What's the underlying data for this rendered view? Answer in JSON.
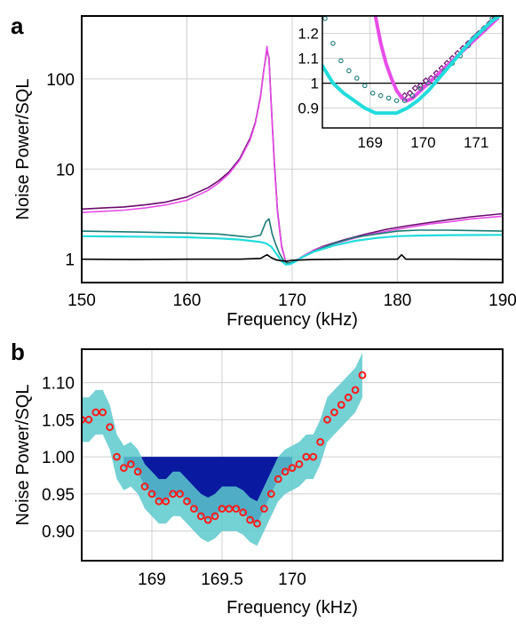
{
  "chart_data": [
    {
      "panel": "a",
      "type": "line",
      "xlabel": "Frequency (kHz)",
      "ylabel": "Noise Power/SQL",
      "xlim": [
        150,
        190
      ],
      "ylim": [
        0.55,
        500
      ],
      "yscale": "log",
      "grid": true,
      "xticks": [
        150,
        160,
        170,
        180,
        190
      ],
      "xtick_labels": [
        "150",
        "160",
        "170",
        "180",
        "190"
      ],
      "yticks": [
        1,
        10,
        100
      ],
      "ytick_labels": [
        "1",
        "10",
        "100"
      ],
      "series": [
        {
          "color": "#6a0a6e",
          "x": [
            150,
            152,
            154,
            156,
            158,
            160,
            162,
            163,
            164,
            165,
            166,
            166.5,
            167,
            167.3,
            167.6,
            167.8,
            168,
            168.3,
            168.6,
            169,
            169.4,
            169.8,
            170.3,
            171,
            172,
            173,
            175,
            177,
            179,
            181,
            183,
            185,
            187,
            190
          ],
          "y": [
            3.6,
            3.7,
            3.8,
            4.0,
            4.3,
            4.9,
            6.2,
            7.4,
            9.3,
            13,
            22,
            33,
            65,
            125,
            210,
            170,
            55,
            12,
            3.5,
            1.4,
            0.92,
            0.88,
            0.95,
            1.07,
            1.25,
            1.4,
            1.65,
            1.9,
            2.15,
            2.35,
            2.55,
            2.75,
            2.95,
            3.2
          ]
        },
        {
          "color": "#e84ce8",
          "x": [
            150,
            152,
            154,
            156,
            158,
            160,
            162,
            163,
            164,
            165,
            166,
            166.5,
            167,
            167.3,
            167.6,
            167.8,
            168,
            168.3,
            168.6,
            169,
            169.4,
            169.8,
            170.3,
            171,
            172,
            173,
            175,
            177,
            179,
            181,
            183,
            185,
            187,
            190
          ],
          "y": [
            3.3,
            3.4,
            3.5,
            3.7,
            4.0,
            4.5,
            5.8,
            7.0,
            8.9,
            12.5,
            21,
            32,
            63,
            122,
            230,
            160,
            52,
            11,
            3.3,
            1.35,
            0.93,
            0.9,
            0.96,
            1.08,
            1.25,
            1.38,
            1.6,
            1.85,
            2.05,
            2.25,
            2.45,
            2.6,
            2.8,
            3.0
          ]
        },
        {
          "color": "#1a7a74",
          "x": [
            150,
            155,
            160,
            163,
            165,
            166,
            167,
            167.5,
            167.8,
            168.1,
            168.4,
            168.8,
            169.2,
            169.6,
            170,
            171,
            172,
            174,
            176,
            178,
            180,
            182,
            185,
            190
          ],
          "y": [
            2.05,
            2.0,
            1.95,
            1.9,
            1.8,
            1.75,
            1.85,
            2.6,
            2.8,
            1.9,
            1.5,
            1.15,
            0.96,
            0.9,
            0.93,
            1.05,
            1.22,
            1.5,
            1.75,
            1.9,
            2.05,
            2.1,
            2.1,
            2.05
          ]
        },
        {
          "color": "#22dcdc",
          "x": [
            150,
            155,
            160,
            163,
            165,
            166,
            167,
            167.5,
            168,
            168.5,
            169,
            169.4,
            169.8,
            170.3,
            171,
            172,
            174,
            176,
            178,
            180,
            182,
            185,
            190
          ],
          "y": [
            1.8,
            1.78,
            1.75,
            1.7,
            1.65,
            1.6,
            1.55,
            1.5,
            1.38,
            1.15,
            0.95,
            0.87,
            0.88,
            0.94,
            1.06,
            1.2,
            1.42,
            1.6,
            1.72,
            1.8,
            1.83,
            1.85,
            1.86
          ]
        },
        {
          "color": "#000000",
          "x": [
            150,
            155,
            160,
            165,
            167,
            167.6,
            168,
            168.5,
            169,
            169.5,
            170,
            172,
            175,
            180,
            180.4,
            180.8,
            185,
            190
          ],
          "y": [
            1.0,
            0.99,
            1.0,
            1.0,
            1.02,
            1.12,
            1.04,
            0.98,
            0.96,
            0.95,
            0.97,
            0.99,
            1.0,
            1.0,
            1.12,
            1.0,
            1.0,
            0.99
          ]
        }
      ]
    },
    {
      "panel": "a-inset",
      "type": "scatter",
      "xlim": [
        168.1,
        171.5
      ],
      "ylim": [
        0.82,
        1.27
      ],
      "grid": true,
      "xticks": [
        169,
        170,
        171
      ],
      "xtick_labels": [
        "169",
        "170",
        "171"
      ],
      "yticks": [
        0.9,
        1.0,
        1.1,
        1.2
      ],
      "ytick_labels": [
        "0.9",
        "1",
        "1.1",
        "1.2"
      ],
      "reference_y": 1.0,
      "series": [
        {
          "color": "#6a0a6e",
          "marker": "diamond",
          "x": [
            169.65,
            169.75,
            169.85,
            169.95,
            170.05,
            170.15,
            170.25,
            170.35,
            170.45,
            170.55,
            170.65,
            170.75,
            170.85,
            170.95,
            171.05,
            171.15,
            171.25,
            171.35
          ],
          "y": [
            0.95,
            0.96,
            0.98,
            0.99,
            1.01,
            1.02,
            1.04,
            1.06,
            1.08,
            1.1,
            1.12,
            1.14,
            1.16,
            1.18,
            1.2,
            1.22,
            1.24,
            1.26
          ]
        },
        {
          "color": "#e84ce8",
          "marker": "line",
          "x": [
            169.1,
            169.2,
            169.3,
            169.4,
            169.5,
            169.6,
            169.7,
            169.8,
            169.9,
            170.0,
            170.2,
            170.4,
            170.6,
            170.8,
            171.0,
            171.2,
            171.4
          ],
          "y": [
            1.27,
            1.16,
            1.08,
            1.02,
            0.97,
            0.94,
            0.93,
            0.94,
            0.96,
            0.98,
            1.02,
            1.06,
            1.1,
            1.14,
            1.18,
            1.22,
            1.26
          ]
        },
        {
          "color": "#1a7a74",
          "marker": "circle",
          "x": [
            168.15,
            168.3,
            168.45,
            168.6,
            168.75,
            168.9,
            169.05,
            169.2,
            169.35,
            169.5,
            169.65,
            169.8,
            169.95,
            170.1,
            170.25,
            170.4,
            170.55,
            170.7,
            170.85,
            171.0,
            171.15,
            171.3
          ],
          "y": [
            1.26,
            1.16,
            1.09,
            1.05,
            1.02,
            0.99,
            0.96,
            0.95,
            0.94,
            0.93,
            0.93,
            0.95,
            0.98,
            1.0,
            1.02,
            1.05,
            1.08,
            1.11,
            1.15,
            1.19,
            1.22,
            1.26
          ]
        },
        {
          "color": "#22dcdc",
          "marker": "line",
          "x": [
            168.1,
            168.3,
            168.5,
            168.7,
            168.9,
            169.1,
            169.3,
            169.5,
            169.7,
            169.9,
            170.1,
            170.3,
            170.5,
            170.7,
            170.9,
            171.1,
            171.3,
            171.5
          ],
          "y": [
            1.07,
            1.0,
            0.96,
            0.93,
            0.9,
            0.88,
            0.88,
            0.88,
            0.9,
            0.93,
            0.97,
            1.02,
            1.07,
            1.12,
            1.17,
            1.21,
            1.25,
            1.28
          ]
        }
      ]
    },
    {
      "panel": "b",
      "type": "scatter",
      "xlabel": "Frequency (kHz)",
      "ylabel": "Noise Power/SQL",
      "xlim": [
        168.5,
        171.5
      ],
      "ylim": [
        0.86,
        1.145
      ],
      "grid": true,
      "xticks": [
        169,
        169.5,
        170
      ],
      "xtick_labels": [
        "169",
        "169.5",
        "170"
      ],
      "yticks": [
        0.9,
        0.95,
        1.0,
        1.05,
        1.1
      ],
      "ytick_labels": [
        "0.90",
        "0.95",
        "1.00",
        "1.05",
        "1.10"
      ],
      "band_color": "#5cc9cc",
      "band_halfwidth": 0.03,
      "squeeze_fill_color": "#0a1aa0",
      "squeeze_fill_range": [
        168.8,
        170.0
      ],
      "points_color": "#ff1a1a",
      "x": [
        168.5,
        168.55,
        168.6,
        168.65,
        168.7,
        168.75,
        168.8,
        168.85,
        168.9,
        168.95,
        169.0,
        169.05,
        169.1,
        169.15,
        169.2,
        169.25,
        169.3,
        169.35,
        169.4,
        169.45,
        169.5,
        169.55,
        169.6,
        169.65,
        169.7,
        169.75,
        169.8,
        169.85,
        169.9,
        169.95,
        170.0,
        170.05,
        170.1,
        170.15,
        170.2,
        170.25,
        170.3,
        170.35,
        170.4,
        170.45,
        170.5
      ],
      "y": [
        1.05,
        1.05,
        1.06,
        1.06,
        1.04,
        1.0,
        0.985,
        0.99,
        0.98,
        0.96,
        0.95,
        0.94,
        0.94,
        0.95,
        0.95,
        0.94,
        0.93,
        0.92,
        0.915,
        0.92,
        0.93,
        0.93,
        0.93,
        0.925,
        0.915,
        0.91,
        0.93,
        0.95,
        0.97,
        0.98,
        0.985,
        0.99,
        1.0,
        1.0,
        1.02,
        1.05,
        1.06,
        1.07,
        1.08,
        1.09,
        1.11
      ]
    }
  ]
}
